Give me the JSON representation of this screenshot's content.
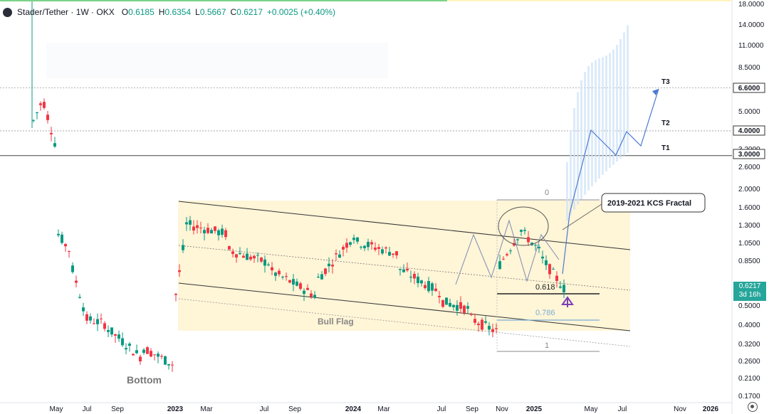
{
  "header": {
    "symbol": "Stader/Tether · 1W · OKX",
    "open_label": "O",
    "open": "0.6185",
    "high_label": "H",
    "high": "0.6354",
    "low_label": "L",
    "low": "0.5667",
    "close_label": "C",
    "close": "0.6217",
    "change": "+0.0025 (+0.40%)"
  },
  "price_axis": {
    "ticks": [
      "18.0000",
      "14.0000",
      "11.0000",
      "8.5000",
      "6.6000",
      "5.0000",
      "4.0000",
      "3.2000",
      "3.0000",
      "2.6000",
      "2.0000",
      "1.6000",
      "1.3000",
      "1.0500",
      "0.8500",
      "0.6217",
      "0.5000",
      "0.4000",
      "0.3200",
      "0.2600",
      "0.2100",
      "0.1700"
    ],
    "highlighted": [
      "6.6000",
      "4.0000",
      "3.0000"
    ],
    "live_price": "0.6217",
    "live_countdown": "3d 16h"
  },
  "time_axis": {
    "labels": [
      "May",
      "Jul",
      "Sep",
      "2023",
      "Mar",
      "Jul",
      "Sep",
      "2024",
      "Mar",
      "Jul",
      "Sep",
      "Nov",
      "2025",
      "May",
      "Jul",
      "Nov",
      "2026"
    ],
    "bold": [
      "2023",
      "2024",
      "2025",
      "2026"
    ]
  },
  "annotations": {
    "bottom": "Bottom",
    "bull_flag": "Bull Flag",
    "fractal_callout": "2019-2021 KCS Fractal",
    "fib_0": "0",
    "fib_0618": "0.618",
    "fib_0786": "0.786",
    "fib_1": "1",
    "t1": "T1",
    "t2": "T2",
    "t3": "T3"
  },
  "colors": {
    "up": "#089981",
    "down": "#f23645",
    "flag_fill": "#fff3d0",
    "projection": "#4a7ad0",
    "arrow": "#7b3fb5"
  },
  "chart_data": {
    "type": "candlestick",
    "title": "Stader/Tether · 1W · OKX",
    "y_scale": "log",
    "ylim": [
      0.17,
      18.0
    ],
    "x_range": [
      "2022-04",
      "2026-04"
    ],
    "levels": [
      {
        "label": "T1",
        "value": 3.0
      },
      {
        "label": "T2",
        "value": 4.0
      },
      {
        "label": "T3",
        "value": 6.6
      }
    ],
    "fib_retracement": [
      {
        "level": "0",
        "price": 1.78
      },
      {
        "level": "0.618",
        "price": 0.58
      },
      {
        "level": "0.786",
        "price": 0.44
      },
      {
        "level": "1",
        "price": 0.3
      }
    ],
    "last_price": 0.6217,
    "ohlc": {
      "open": 0.6185,
      "high": 0.6354,
      "low": 0.5667,
      "close": 0.6217
    }
  }
}
